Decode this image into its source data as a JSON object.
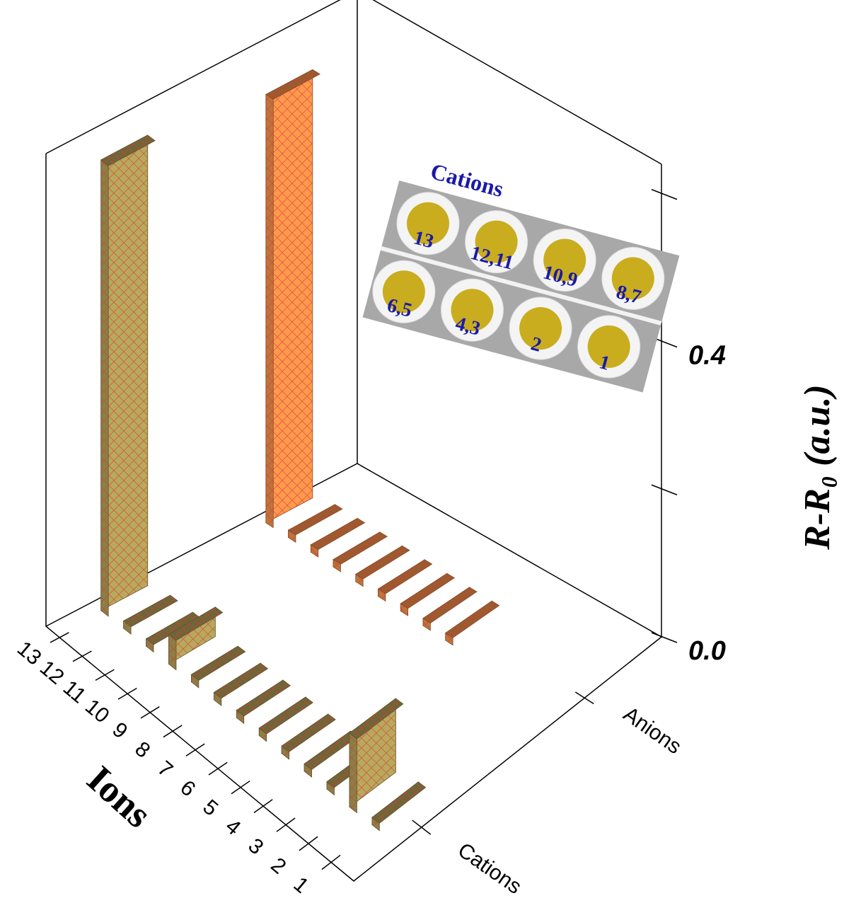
{
  "chart_data": {
    "type": "bar3d",
    "x_label": "Ions",
    "z_label": "R-R₀ (a.u.)",
    "categories": [
      "1",
      "2",
      "3",
      "4",
      "5",
      "6",
      "7",
      "8",
      "9",
      "10",
      "11",
      "12",
      "13"
    ],
    "series": [
      {
        "name": "Cations",
        "color": "#b8aa5c",
        "values": [
          0.01,
          0.1,
          0.01,
          0.01,
          0.01,
          0.01,
          0.01,
          0.01,
          0.01,
          0.04,
          0.01,
          0.01,
          0.61
        ]
      },
      {
        "name": "Anions",
        "color": "#ff9a4d",
        "values": [
          null,
          null,
          null,
          null,
          0.01,
          0.01,
          0.01,
          0.01,
          0.01,
          0.01,
          0.01,
          0.01,
          0.58
        ]
      }
    ],
    "zlim": [
      0,
      0.64
    ],
    "zticks": [
      {
        "value": 0,
        "label": "0.0"
      },
      0.4
    ],
    "zminorticks": [
      0.2,
      0.6
    ],
    "annotation": {
      "title": "Cations",
      "labels": [
        "13",
        "12,11",
        "10,9",
        "8,7",
        "6,5",
        "4,3",
        "2",
        "1"
      ]
    }
  }
}
